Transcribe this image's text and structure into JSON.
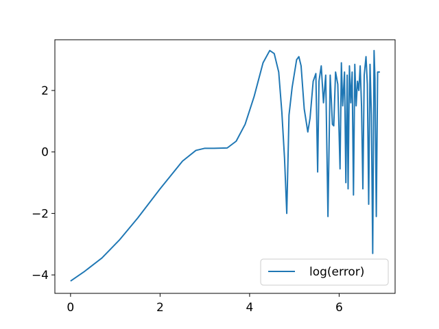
{
  "chart_data": {
    "type": "line",
    "title": "",
    "xlabel": "",
    "ylabel": "",
    "xlim": [
      -0.35,
      7.25
    ],
    "ylim": [
      -4.6,
      3.65
    ],
    "xticks": [
      0,
      2,
      4,
      6
    ],
    "yticks": [
      -4,
      -2,
      0,
      2
    ],
    "xtick_labels": [
      "0",
      "2",
      "4",
      "6"
    ],
    "ytick_labels": [
      "−4",
      "−2",
      "0",
      "2"
    ],
    "grid": false,
    "legend": {
      "position": "lower-right",
      "entries": [
        "log(error)"
      ]
    },
    "series": [
      {
        "name": "log(error)",
        "color": "#1f77b4",
        "x": [
          0.0,
          0.3,
          0.7,
          1.1,
          1.5,
          2.0,
          2.5,
          2.8,
          3.0,
          3.2,
          3.5,
          3.7,
          3.9,
          4.1,
          4.3,
          4.45,
          4.55,
          4.65,
          4.72,
          4.78,
          4.83,
          4.88,
          4.95,
          5.05,
          5.1,
          5.15,
          5.22,
          5.3,
          5.35,
          5.42,
          5.48,
          5.52,
          5.55,
          5.6,
          5.65,
          5.7,
          5.75,
          5.8,
          5.85,
          5.88,
          5.92,
          5.97,
          6.02,
          6.05,
          6.08,
          6.12,
          6.15,
          6.18,
          6.2,
          6.23,
          6.26,
          6.29,
          6.32,
          6.35,
          6.38,
          6.41,
          6.44,
          6.47,
          6.5,
          6.53,
          6.56,
          6.6,
          6.63,
          6.66,
          6.69,
          6.72,
          6.75,
          6.78,
          6.8,
          6.83,
          6.86,
          6.88,
          6.91
        ],
        "y": [
          -4.2,
          -3.9,
          -3.45,
          -2.85,
          -2.15,
          -1.2,
          -0.3,
          0.05,
          0.12,
          0.12,
          0.13,
          0.35,
          0.9,
          1.8,
          2.9,
          3.3,
          3.2,
          2.6,
          1.3,
          -0.2,
          -2.0,
          1.2,
          2.1,
          3.0,
          3.1,
          2.8,
          1.4,
          0.65,
          1.1,
          2.3,
          2.55,
          -0.65,
          2.3,
          2.8,
          1.6,
          2.5,
          -2.1,
          2.5,
          0.9,
          0.85,
          2.6,
          2.2,
          -0.55,
          2.9,
          1.5,
          2.6,
          -1.0,
          2.5,
          -1.2,
          2.8,
          1.6,
          2.6,
          -1.4,
          2.85,
          1.5,
          2.3,
          2.0,
          2.8,
          1.5,
          -1.2,
          2.5,
          3.1,
          2.2,
          -1.7,
          2.85,
          1.2,
          -3.3,
          3.3,
          2.4,
          -2.1,
          2.6,
          2.6,
          2.6
        ]
      }
    ]
  }
}
